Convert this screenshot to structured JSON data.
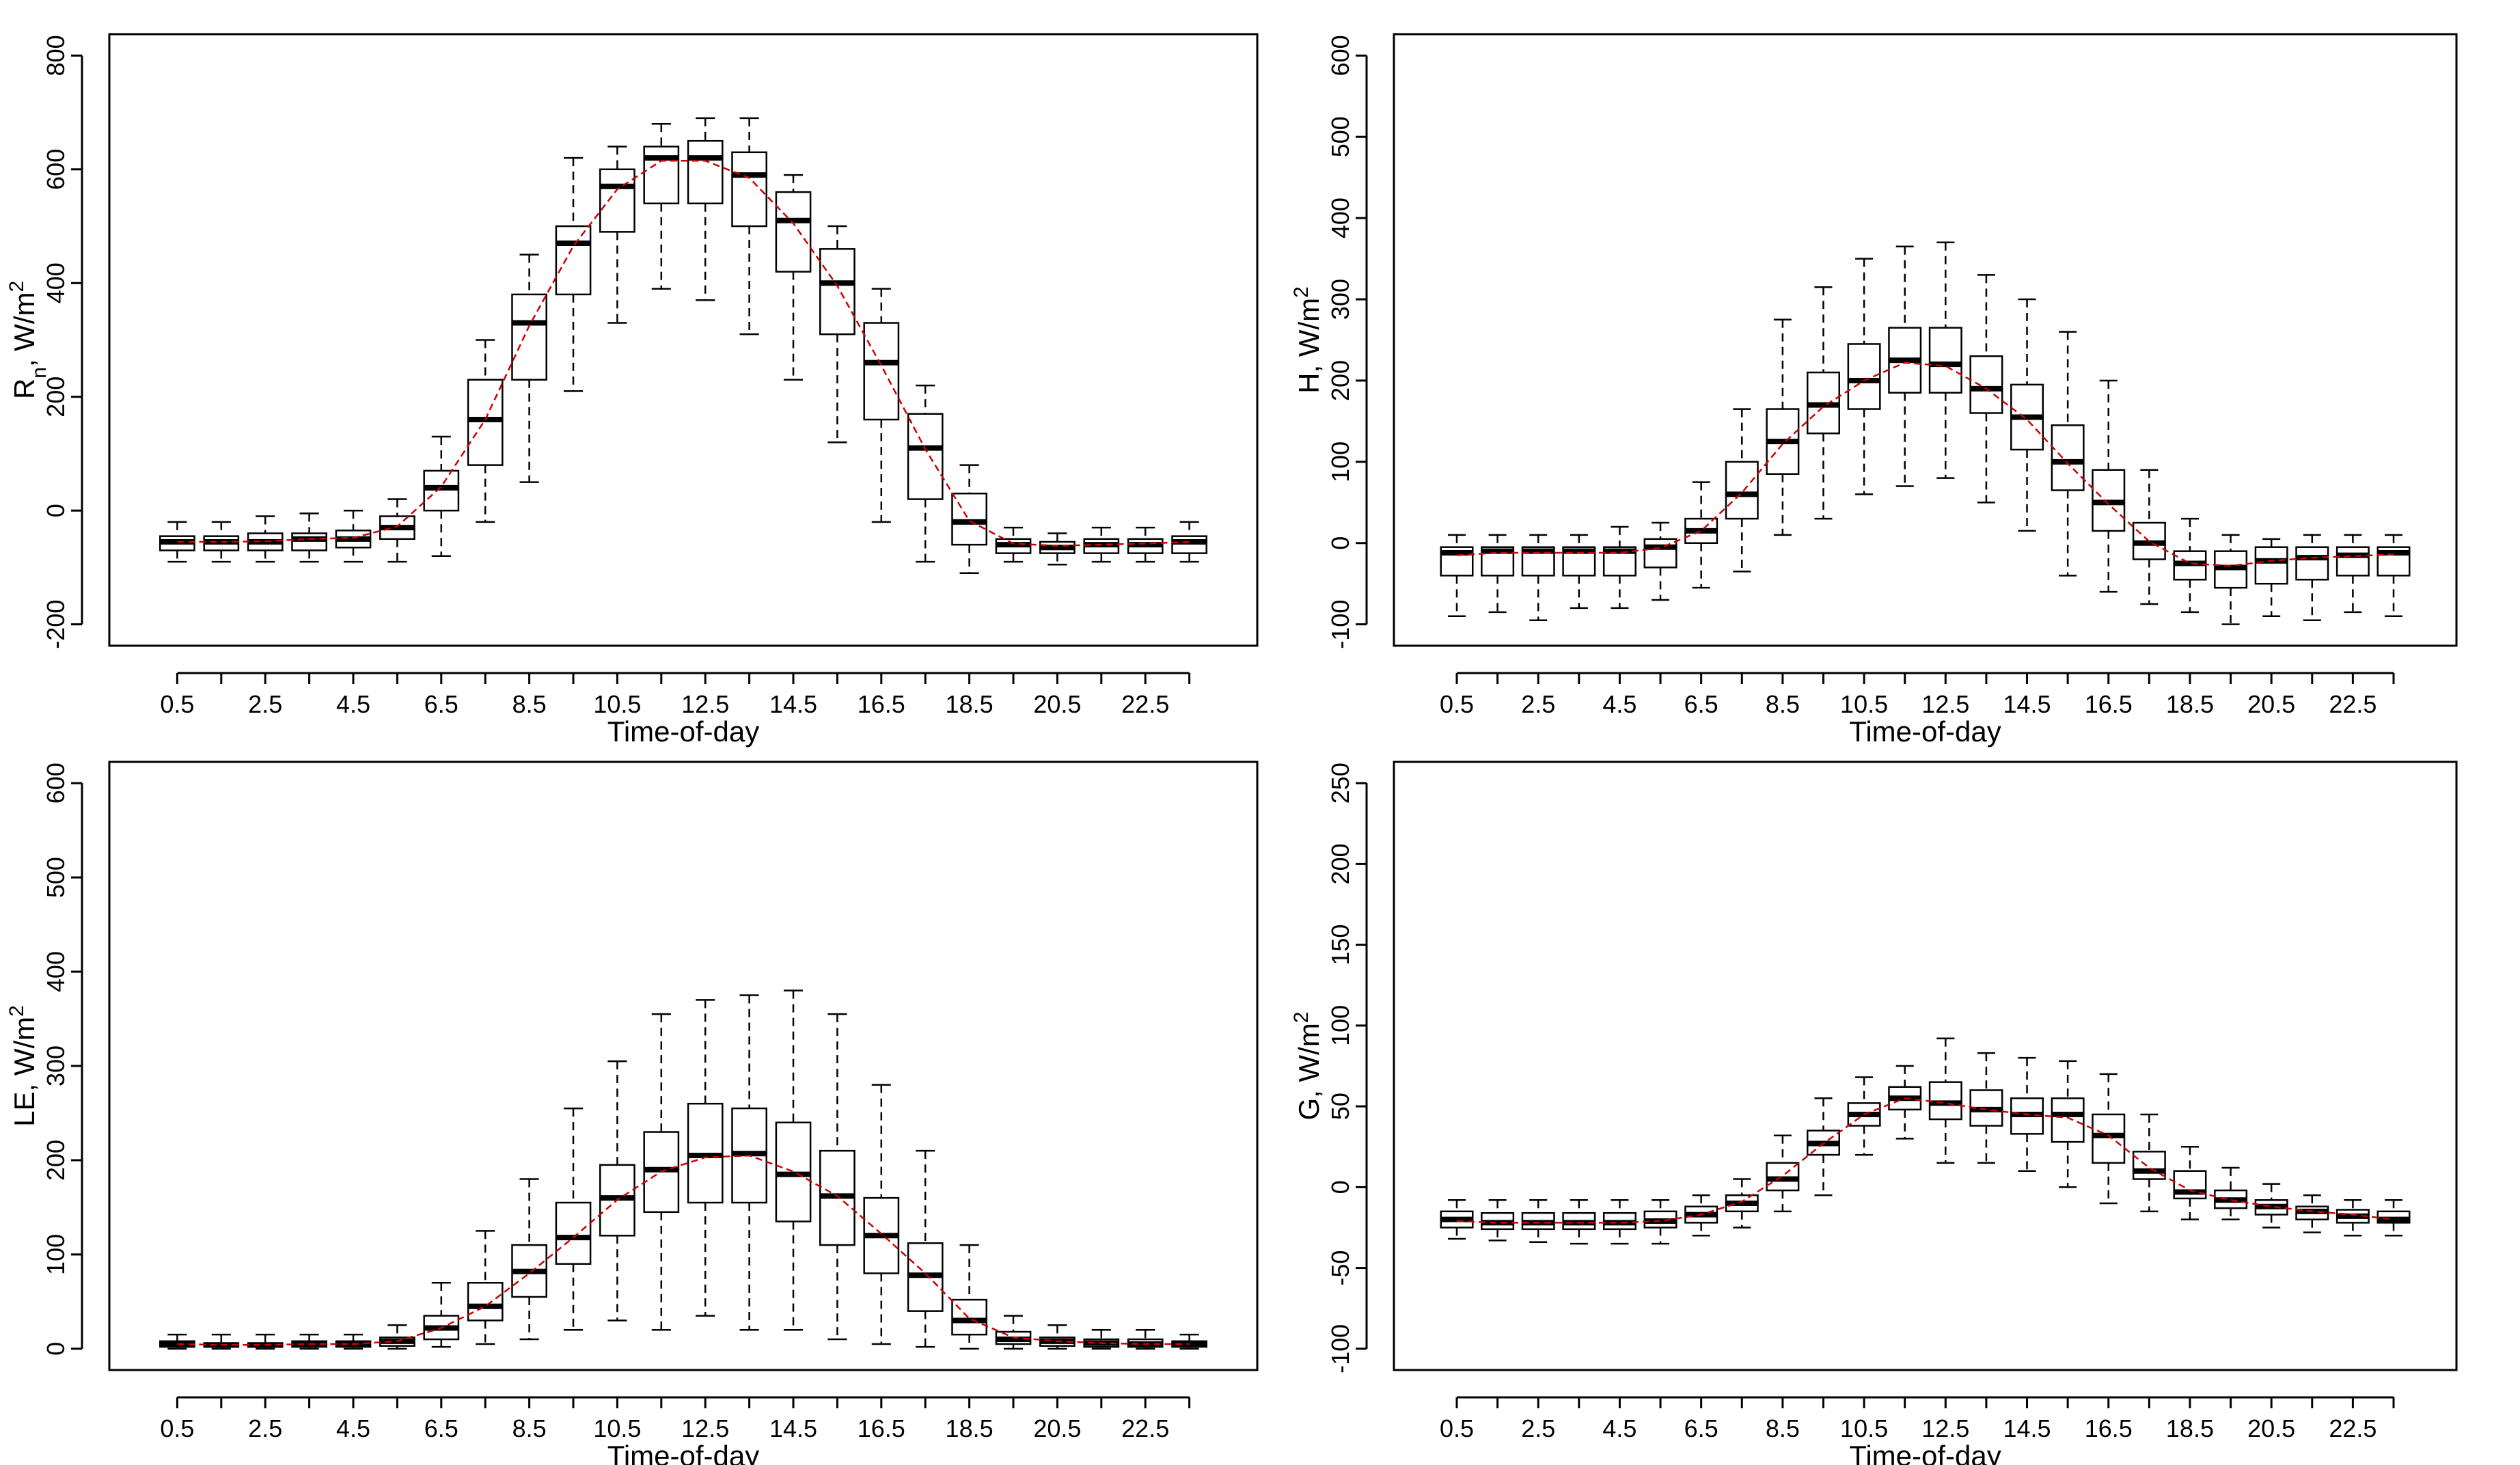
{
  "chart_data": [
    {
      "type": "boxplot",
      "panel": "top-left",
      "xlabel": "Time-of-day",
      "ylabel": {
        "base": "R",
        "sub": "n",
        "mid": ", W/m",
        "sup": "2"
      },
      "ylim": [
        -200,
        800
      ],
      "yticks": [
        -200,
        0,
        200,
        400,
        600,
        800
      ],
      "xtick_labels": [
        "0.5",
        "2.5",
        "4.5",
        "6.5",
        "8.5",
        "10.5",
        "12.5",
        "14.5",
        "16.5",
        "18.5",
        "20.5",
        "22.5"
      ],
      "x": [
        0.5,
        1.5,
        2.5,
        3.5,
        4.5,
        5.5,
        6.5,
        7.5,
        8.5,
        9.5,
        10.5,
        11.5,
        12.5,
        13.5,
        14.5,
        15.5,
        16.5,
        17.5,
        18.5,
        19.5,
        20.5,
        21.5,
        22.5,
        23.5
      ],
      "whisker_low": [
        -90,
        -90,
        -90,
        -90,
        -90,
        -90,
        -80,
        -20,
        50,
        210,
        330,
        390,
        370,
        310,
        230,
        120,
        -20,
        -90,
        -110,
        -90,
        -95,
        -90,
        -90,
        -90
      ],
      "q1": [
        -70,
        -70,
        -70,
        -70,
        -65,
        -50,
        0,
        80,
        230,
        380,
        490,
        540,
        540,
        500,
        420,
        310,
        160,
        20,
        -60,
        -75,
        -75,
        -75,
        -75,
        -75
      ],
      "median": [
        -55,
        -55,
        -55,
        -50,
        -50,
        -30,
        40,
        160,
        330,
        470,
        570,
        620,
        620,
        590,
        510,
        400,
        260,
        110,
        -20,
        -60,
        -65,
        -60,
        -60,
        -55
      ],
      "q3": [
        -45,
        -45,
        -40,
        -40,
        -35,
        -10,
        70,
        230,
        380,
        500,
        600,
        640,
        650,
        630,
        560,
        460,
        330,
        170,
        30,
        -50,
        -55,
        -50,
        -50,
        -45
      ],
      "whisker_high": [
        -20,
        -20,
        -10,
        -5,
        0,
        20,
        130,
        300,
        450,
        620,
        640,
        680,
        690,
        690,
        590,
        500,
        390,
        220,
        80,
        -30,
        -40,
        -30,
        -30,
        -20
      ],
      "mean_line": [
        -55,
        -55,
        -54,
        -50,
        -48,
        -28,
        42,
        160,
        325,
        465,
        565,
        615,
        615,
        585,
        505,
        395,
        255,
        108,
        -18,
        -58,
        -62,
        -60,
        -58,
        -55
      ],
      "colors": {
        "box": "#000000",
        "median": "#000000",
        "mean_line": "#cc0000"
      }
    },
    {
      "type": "boxplot",
      "panel": "top-right",
      "xlabel": "Time-of-day",
      "ylabel": {
        "base": "H",
        "sub": "",
        "mid": ", W/m",
        "sup": "2"
      },
      "ylim": [
        -100,
        600
      ],
      "yticks": [
        -100,
        0,
        100,
        200,
        300,
        400,
        500,
        600
      ],
      "xtick_labels": [
        "0.5",
        "2.5",
        "4.5",
        "6.5",
        "8.5",
        "10.5",
        "12.5",
        "14.5",
        "16.5",
        "18.5",
        "20.5",
        "22.5"
      ],
      "x": [
        0.5,
        1.5,
        2.5,
        3.5,
        4.5,
        5.5,
        6.5,
        7.5,
        8.5,
        9.5,
        10.5,
        11.5,
        12.5,
        13.5,
        14.5,
        15.5,
        16.5,
        17.5,
        18.5,
        19.5,
        20.5,
        21.5,
        22.5,
        23.5
      ],
      "whisker_low": [
        -90,
        -85,
        -95,
        -80,
        -80,
        -70,
        -55,
        -35,
        10,
        30,
        60,
        70,
        80,
        50,
        15,
        -40,
        -60,
        -75,
        -85,
        -100,
        -90,
        -95,
        -85,
        -90
      ],
      "q1": [
        -40,
        -40,
        -40,
        -40,
        -40,
        -30,
        0,
        30,
        85,
        135,
        165,
        185,
        185,
        160,
        115,
        65,
        15,
        -20,
        -45,
        -55,
        -50,
        -45,
        -40,
        -40
      ],
      "median": [
        -12,
        -10,
        -10,
        -10,
        -10,
        -5,
        15,
        60,
        125,
        170,
        200,
        225,
        220,
        190,
        155,
        100,
        50,
        0,
        -25,
        -30,
        -22,
        -18,
        -15,
        -12
      ],
      "q3": [
        -5,
        -5,
        -5,
        -5,
        -5,
        5,
        30,
        100,
        165,
        210,
        245,
        265,
        265,
        230,
        195,
        145,
        90,
        25,
        -10,
        -10,
        -5,
        -5,
        -5,
        -5
      ],
      "whisker_high": [
        10,
        10,
        10,
        10,
        20,
        25,
        75,
        165,
        275,
        315,
        350,
        365,
        370,
        330,
        300,
        260,
        200,
        90,
        30,
        10,
        5,
        10,
        10,
        10
      ],
      "mean_line": [
        -15,
        -12,
        -12,
        -12,
        -12,
        -6,
        15,
        62,
        122,
        168,
        200,
        222,
        218,
        190,
        152,
        98,
        48,
        2,
        -25,
        -28,
        -22,
        -18,
        -16,
        -14
      ],
      "colors": {
        "box": "#000000",
        "median": "#000000",
        "mean_line": "#cc0000"
      }
    },
    {
      "type": "boxplot",
      "panel": "bottom-left",
      "xlabel": "Time-of-day",
      "ylabel": {
        "base": "LE",
        "sub": "",
        "mid": ", W/m",
        "sup": "2"
      },
      "ylim": [
        0,
        600
      ],
      "yticks": [
        0,
        100,
        200,
        300,
        400,
        500,
        600
      ],
      "xtick_labels": [
        "0.5",
        "2.5",
        "4.5",
        "6.5",
        "8.5",
        "10.5",
        "12.5",
        "14.5",
        "16.5",
        "18.5",
        "20.5",
        "22.5"
      ],
      "x": [
        0.5,
        1.5,
        2.5,
        3.5,
        4.5,
        5.5,
        6.5,
        7.5,
        8.5,
        9.5,
        10.5,
        11.5,
        12.5,
        13.5,
        14.5,
        15.5,
        16.5,
        17.5,
        18.5,
        19.5,
        20.5,
        21.5,
        22.5,
        23.5
      ],
      "whisker_low": [
        0,
        0,
        0,
        0,
        0,
        0,
        2,
        5,
        10,
        20,
        30,
        20,
        35,
        20,
        20,
        10,
        5,
        2,
        0,
        0,
        0,
        0,
        0,
        0
      ],
      "q1": [
        2,
        2,
        2,
        2,
        2,
        3,
        10,
        30,
        55,
        90,
        120,
        145,
        155,
        155,
        135,
        110,
        80,
        40,
        15,
        5,
        3,
        2,
        2,
        2
      ],
      "median": [
        5,
        4,
        4,
        5,
        5,
        8,
        22,
        45,
        82,
        118,
        160,
        190,
        205,
        207,
        185,
        162,
        120,
        78,
        30,
        10,
        8,
        6,
        5,
        5
      ],
      "q3": [
        8,
        6,
        6,
        8,
        8,
        12,
        35,
        70,
        110,
        155,
        195,
        230,
        260,
        255,
        240,
        210,
        160,
        112,
        52,
        18,
        12,
        10,
        10,
        8
      ],
      "whisker_high": [
        15,
        15,
        15,
        15,
        15,
        25,
        70,
        125,
        180,
        255,
        305,
        355,
        370,
        375,
        380,
        355,
        280,
        210,
        110,
        35,
        25,
        20,
        20,
        15
      ],
      "mean_line": [
        5,
        4,
        4,
        5,
        5,
        8,
        22,
        45,
        80,
        118,
        158,
        188,
        203,
        205,
        188,
        162,
        122,
        80,
        32,
        12,
        8,
        6,
        5,
        5
      ],
      "colors": {
        "box": "#000000",
        "median": "#000000",
        "mean_line": "#cc0000"
      }
    },
    {
      "type": "boxplot",
      "panel": "bottom-right",
      "xlabel": "Time-of-day",
      "ylabel": {
        "base": "G",
        "sub": "",
        "mid": ", W/m",
        "sup": "2"
      },
      "ylim": [
        -100,
        250
      ],
      "yticks": [
        -100,
        -50,
        0,
        50,
        100,
        150,
        200,
        250
      ],
      "xtick_labels": [
        "0.5",
        "2.5",
        "4.5",
        "6.5",
        "8.5",
        "10.5",
        "12.5",
        "14.5",
        "16.5",
        "18.5",
        "20.5",
        "22.5"
      ],
      "x": [
        0.5,
        1.5,
        2.5,
        3.5,
        4.5,
        5.5,
        6.5,
        7.5,
        8.5,
        9.5,
        10.5,
        11.5,
        12.5,
        13.5,
        14.5,
        15.5,
        16.5,
        17.5,
        18.5,
        19.5,
        20.5,
        21.5,
        22.5,
        23.5
      ],
      "whisker_low": [
        -32,
        -33,
        -34,
        -35,
        -35,
        -35,
        -30,
        -25,
        -15,
        -5,
        20,
        30,
        15,
        15,
        10,
        0,
        -10,
        -15,
        -20,
        -20,
        -25,
        -28,
        -30,
        -30
      ],
      "q1": [
        -25,
        -26,
        -26,
        -26,
        -26,
        -25,
        -22,
        -15,
        -2,
        20,
        38,
        48,
        42,
        38,
        33,
        28,
        15,
        5,
        -7,
        -13,
        -17,
        -20,
        -22,
        -22
      ],
      "median": [
        -20,
        -22,
        -22,
        -22,
        -22,
        -21,
        -17,
        -10,
        5,
        27,
        45,
        55,
        52,
        48,
        45,
        45,
        32,
        10,
        -3,
        -8,
        -12,
        -15,
        -18,
        -20
      ],
      "q3": [
        -15,
        -16,
        -16,
        -16,
        -16,
        -15,
        -12,
        -5,
        15,
        35,
        52,
        62,
        65,
        60,
        55,
        55,
        45,
        22,
        10,
        -2,
        -8,
        -12,
        -14,
        -15
      ],
      "whisker_high": [
        -8,
        -8,
        -8,
        -8,
        -8,
        -8,
        -5,
        5,
        32,
        55,
        68,
        75,
        92,
        83,
        80,
        78,
        70,
        45,
        25,
        12,
        2,
        -5,
        -8,
        -8
      ],
      "mean_line": [
        -21,
        -22,
        -22,
        -22,
        -22,
        -21,
        -17,
        -9,
        7,
        27,
        45,
        55,
        52,
        48,
        45,
        43,
        32,
        12,
        -2,
        -8,
        -12,
        -15,
        -17,
        -20
      ],
      "colors": {
        "box": "#000000",
        "median": "#000000",
        "mean_line": "#cc0000"
      }
    }
  ]
}
